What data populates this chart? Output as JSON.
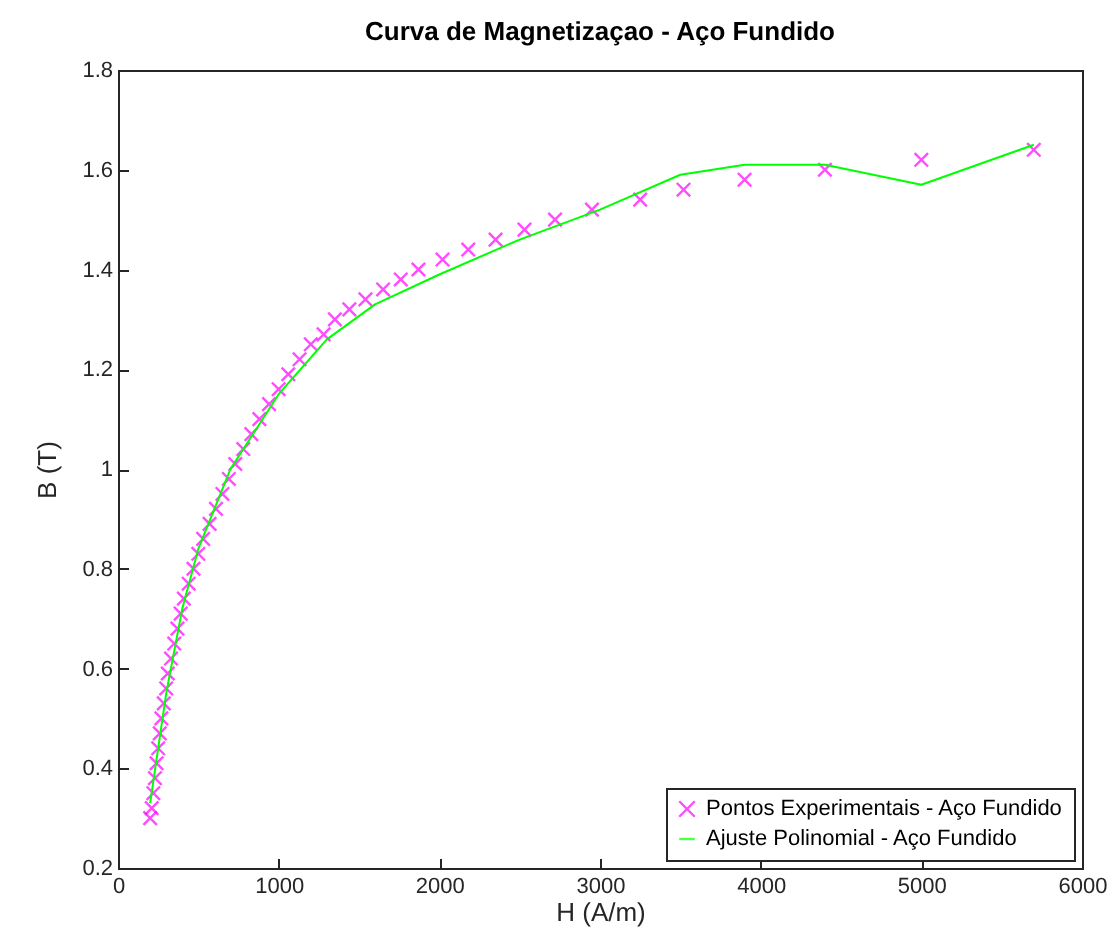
{
  "chart_data": {
    "type": "scatter",
    "title": "Curva de Magnetizaçao - Aço Fundido",
    "xlabel": "H (A/m)",
    "ylabel": "B (T)",
    "xlim": [
      0,
      6000
    ],
    "xticks": [
      0,
      1000,
      2000,
      3000,
      4000,
      5000,
      6000
    ],
    "ylim": [
      0.2,
      1.8
    ],
    "yticks": [
      0.2,
      0.4,
      0.6,
      0.8,
      1,
      1.2,
      1.4,
      1.6,
      1.8
    ],
    "grid": false,
    "legend": "bottom right",
    "series": [
      {
        "name": "Pontos Experimentais - Aço Fundido",
        "marker": "cross",
        "color": "#ff00ff",
        "x": [
          200,
          210,
          220,
          230,
          240,
          250,
          260,
          270,
          285,
          300,
          310,
          330,
          350,
          370,
          390,
          410,
          440,
          470,
          500,
          530,
          570,
          610,
          650,
          690,
          730,
          780,
          830,
          880,
          940,
          1000,
          1060,
          1130,
          1200,
          1280,
          1350,
          1440,
          1540,
          1650,
          1760,
          1870,
          2020,
          2180,
          2350,
          2530,
          2720,
          2950,
          3250,
          3520,
          3900,
          4400,
          5000,
          5700
        ],
        "values": [
          0.3,
          0.32,
          0.35,
          0.38,
          0.41,
          0.44,
          0.47,
          0.5,
          0.53,
          0.56,
          0.59,
          0.62,
          0.65,
          0.68,
          0.71,
          0.74,
          0.77,
          0.8,
          0.83,
          0.86,
          0.89,
          0.92,
          0.95,
          0.98,
          1.01,
          1.04,
          1.07,
          1.1,
          1.13,
          1.16,
          1.19,
          1.22,
          1.25,
          1.27,
          1.3,
          1.32,
          1.34,
          1.36,
          1.38,
          1.4,
          1.42,
          1.44,
          1.46,
          1.48,
          1.5,
          1.52,
          1.54,
          1.56,
          1.58,
          1.6,
          1.62,
          1.64
        ]
      },
      {
        "name": "Ajuste Polinomial - Aço Fundido",
        "type": "line",
        "line_style": "solid",
        "color": "#00ff00",
        "x": [
          200,
          300,
          400,
          500,
          700,
          1000,
          1300,
          1600,
          2000,
          2500,
          3000,
          3500,
          3900,
          4400,
          5000,
          5700
        ],
        "values": [
          0.33,
          0.55,
          0.72,
          0.84,
          1.0,
          1.15,
          1.26,
          1.33,
          1.39,
          1.46,
          1.52,
          1.59,
          1.61,
          1.61,
          1.57,
          1.65
        ]
      }
    ]
  }
}
